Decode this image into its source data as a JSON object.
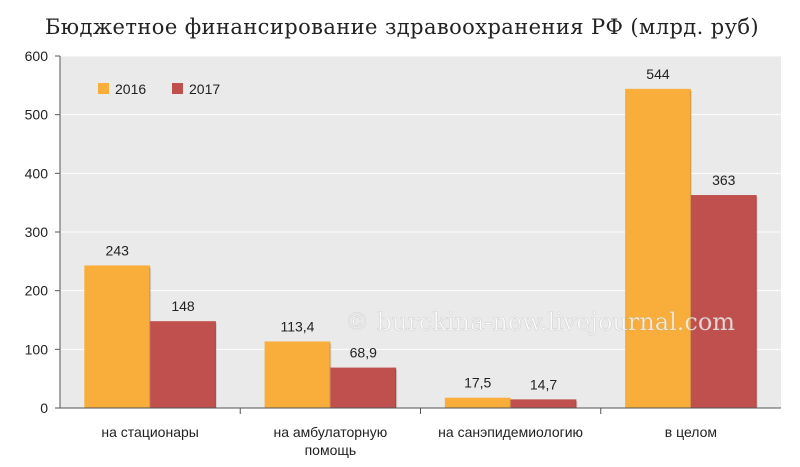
{
  "chart_data": {
    "type": "bar",
    "title": "Бюджетное финансирование здравоохранения РФ (млрд. руб)",
    "categories": [
      [
        "на стационары"
      ],
      [
        "на амбулаторную",
        "помощь"
      ],
      [
        "на санэпидемиологию"
      ],
      [
        "в целом"
      ]
    ],
    "series": [
      {
        "name": "2016",
        "color": "#F9AE3B",
        "values": [
          243,
          113.4,
          17.5,
          544
        ],
        "labels": [
          "243",
          "113,4",
          "17,5",
          "544"
        ]
      },
      {
        "name": "2017",
        "color": "#C0504D",
        "values": [
          148,
          68.9,
          14.7,
          363
        ],
        "labels": [
          "148",
          "68,9",
          "14,7",
          "363"
        ]
      }
    ],
    "ylim": [
      0,
      600
    ],
    "yticks": [
      0,
      100,
      200,
      300,
      400,
      500,
      600
    ],
    "grid": true,
    "legend": "top-left",
    "background": "#EAEAEA",
    "watermark": "© burckina-new.livejournal.com"
  }
}
